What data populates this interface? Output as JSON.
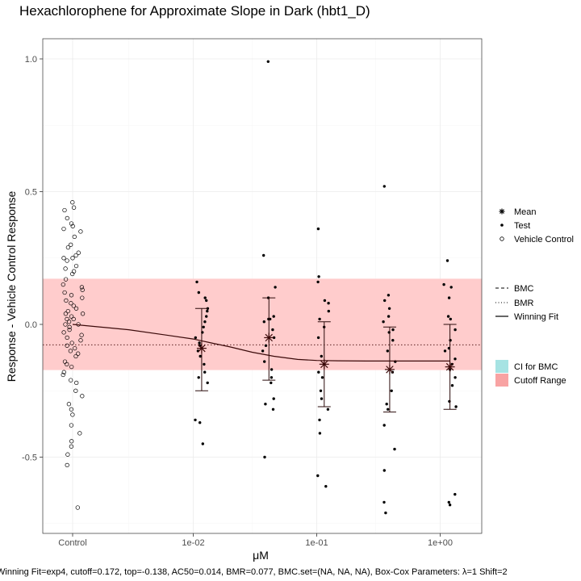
{
  "title": "Hexachlorophene for Approximate Slope in Dark (hbt1_D)",
  "footer": "Winning Fit=exp4, cutoff=0.172, top=-0.138, AC50=0.014, BMR=0.077, BMC.set=(NA, NA, NA), Box-Cox Parameters: λ=1 Shift=2",
  "colors": {
    "cutoff_band": "#ffcccc",
    "cutoff_legend": "#f8a3a3",
    "ci_legend": "#a6e3e3",
    "fit_line": "#3b0a0a",
    "points": "#000000"
  },
  "legend": {
    "shapes": [
      {
        "label": "Mean",
        "icon": "asterisk"
      },
      {
        "label": "Test",
        "icon": "filled-dot"
      },
      {
        "label": "Vehicle Control",
        "icon": "open-circle"
      }
    ],
    "lines": [
      {
        "label": "BMC",
        "style": "dashed"
      },
      {
        "label": "BMR",
        "style": "dotted"
      },
      {
        "label": "Winning Fit",
        "style": "solid"
      }
    ],
    "fills": [
      {
        "label": "CI for BMC",
        "color": "#a6e3e3"
      },
      {
        "label": "Cutoff Range",
        "color": "#f8a3a3"
      }
    ]
  },
  "chart_data": {
    "type": "scatter",
    "title": "Hexachlorophene for Approximate Slope in Dark (hbt1_D)",
    "xlabel": "μM",
    "ylabel": "Response - Vehicle Control Response",
    "x_scale": "log10 with Control position",
    "x_ticks": [
      {
        "label": "Control",
        "value": "Control"
      },
      {
        "label": "1e-02",
        "value": 0.01
      },
      {
        "label": "1e-01",
        "value": 0.1
      },
      {
        "label": "1e+00",
        "value": 1
      }
    ],
    "y_ticks": [
      -0.5,
      0.0,
      0.5,
      1.0
    ],
    "y_tick_labels": [
      "-0.5",
      "0.0",
      "0.5",
      "1.0"
    ],
    "ylim": [
      -0.78,
      1.08
    ],
    "grid": true,
    "cutoff_range": [
      -0.172,
      0.172
    ],
    "bmr_line": -0.077,
    "vehicle_control": [
      0.46,
      0.44,
      0.43,
      0.4,
      0.38,
      0.37,
      0.36,
      0.35,
      0.33,
      0.3,
      0.29,
      0.27,
      0.26,
      0.25,
      0.25,
      0.24,
      0.22,
      0.21,
      0.2,
      0.19,
      0.17,
      0.15,
      0.14,
      0.13,
      0.12,
      0.11,
      0.1,
      0.09,
      0.08,
      0.07,
      0.06,
      0.05,
      0.04,
      0.04,
      0.03,
      0.02,
      0.02,
      0.01,
      0.0,
      0.0,
      -0.01,
      -0.02,
      -0.03,
      -0.04,
      -0.05,
      -0.06,
      -0.07,
      -0.08,
      -0.09,
      -0.1,
      -0.11,
      -0.12,
      -0.14,
      -0.15,
      -0.16,
      -0.18,
      -0.19,
      -0.21,
      -0.22,
      -0.25,
      -0.27,
      -0.3,
      -0.32,
      -0.34,
      -0.38,
      -0.41,
      -0.44,
      -0.46,
      -0.49,
      -0.53,
      -0.69
    ],
    "test_groups": [
      {
        "dose": 0.0117,
        "responses": [
          0.16,
          0.12,
          0.1,
          0.09,
          0.06,
          0.05,
          0.03,
          0.01,
          -0.01,
          -0.03,
          -0.05,
          -0.07,
          -0.08,
          -0.1,
          -0.12,
          -0.15,
          -0.18,
          -0.2,
          -0.22,
          -0.36,
          -0.37,
          -0.45
        ],
        "mean": -0.09,
        "ci": [
          -0.25,
          0.06
        ]
      },
      {
        "dose": 0.041,
        "responses": [
          0.99,
          0.26,
          0.14,
          0.1,
          0.03,
          0.02,
          0.02,
          0.01,
          -0.02,
          -0.05,
          -0.08,
          -0.1,
          -0.14,
          -0.17,
          -0.2,
          -0.22,
          -0.28,
          -0.3,
          -0.32,
          -0.5
        ],
        "mean": -0.05,
        "ci": [
          -0.21,
          0.1
        ]
      },
      {
        "dose": 0.115,
        "responses": [
          0.36,
          0.18,
          0.16,
          0.09,
          0.08,
          0.05,
          0.02,
          -0.01,
          -0.05,
          -0.12,
          -0.15,
          -0.18,
          -0.2,
          -0.25,
          -0.28,
          -0.32,
          -0.36,
          -0.41,
          -0.57,
          -0.61
        ],
        "mean": -0.15,
        "ci": [
          -0.31,
          0.01
        ]
      },
      {
        "dose": 0.39,
        "responses": [
          0.52,
          0.11,
          0.09,
          0.06,
          0.03,
          0.01,
          -0.02,
          -0.03,
          -0.06,
          -0.1,
          -0.14,
          -0.18,
          -0.25,
          -0.3,
          -0.32,
          -0.38,
          -0.47,
          -0.55,
          -0.67,
          -0.71
        ],
        "mean": -0.17,
        "ci": [
          -0.33,
          -0.01
        ]
      },
      {
        "dose": 1.2,
        "responses": [
          0.24,
          0.15,
          0.14,
          0.1,
          0.03,
          0.02,
          -0.02,
          -0.06,
          -0.09,
          -0.1,
          -0.13,
          -0.15,
          -0.17,
          -0.2,
          -0.23,
          -0.29,
          -0.31,
          -0.64,
          -0.67,
          -0.68
        ],
        "mean": -0.16,
        "ci": [
          -0.32,
          0.0
        ]
      }
    ],
    "fit_curve": {
      "model": "exp4",
      "x": [
        0.0001,
        0.003,
        0.006,
        0.01,
        0.014,
        0.02,
        0.03,
        0.045,
        0.07,
        0.1,
        0.15,
        0.25,
        0.5,
        1.2
      ],
      "y": [
        0.0,
        -0.02,
        -0.04,
        -0.055,
        -0.07,
        -0.085,
        -0.105,
        -0.12,
        -0.132,
        -0.136,
        -0.137,
        -0.138,
        -0.138,
        -0.138
      ]
    }
  }
}
